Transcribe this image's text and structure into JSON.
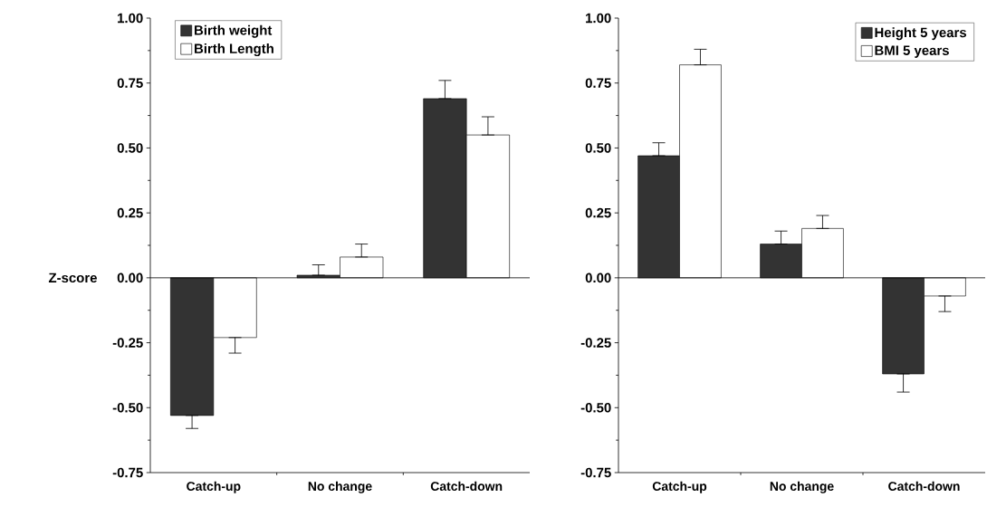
{
  "chart_data": [
    {
      "type": "bar",
      "ylabel": "Z-score",
      "categories": [
        "Catch-up",
        "No change",
        "Catch-down"
      ],
      "ylim": [
        -0.75,
        1.0
      ],
      "yticks": [
        {
          "value": -0.75,
          "label": "-0.75"
        },
        {
          "value": -0.5,
          "label": "-0.50"
        },
        {
          "value": -0.25,
          "label": "-0.25"
        },
        {
          "value": 0,
          "label": "0.00"
        },
        {
          "value": 0.25,
          "label": "0.25"
        },
        {
          "value": 0.5,
          "label": "0.50"
        },
        {
          "value": 0.75,
          "label": "0.75"
        },
        {
          "value": 1.0,
          "label": "1.00"
        }
      ],
      "legend": "top left",
      "series": [
        {
          "name": "Birth weight",
          "color": "#333333",
          "values": [
            -0.53,
            0.01,
            0.69
          ],
          "errors": [
            0.05,
            0.04,
            0.07
          ]
        },
        {
          "name": "Birth Length",
          "color": "#ffffff",
          "values": [
            -0.23,
            0.08,
            0.55
          ],
          "errors": [
            0.06,
            0.05,
            0.07
          ]
        }
      ]
    },
    {
      "type": "bar",
      "categories": [
        "Catch-up",
        "No change",
        "Catch-down"
      ],
      "ylim": [
        -0.75,
        1.0
      ],
      "yticks": [
        {
          "value": -0.75,
          "label": "-0.75"
        },
        {
          "value": -0.5,
          "label": "-0.50"
        },
        {
          "value": -0.25,
          "label": "-0.25"
        },
        {
          "value": 0,
          "label": "0.00"
        },
        {
          "value": 0.25,
          "label": "0.25"
        },
        {
          "value": 0.5,
          "label": "0.50"
        },
        {
          "value": 0.75,
          "label": "0.75"
        },
        {
          "value": 1.0,
          "label": "1.00"
        }
      ],
      "legend": "top right",
      "series": [
        {
          "name": "Height 5 years",
          "color": "#333333",
          "values": [
            0.47,
            0.13,
            -0.37
          ],
          "errors": [
            0.05,
            0.05,
            0.07
          ]
        },
        {
          "name": "BMI 5 years",
          "color": "#ffffff",
          "values": [
            0.82,
            0.19,
            -0.07
          ],
          "errors": [
            0.06,
            0.05,
            0.06
          ]
        }
      ]
    }
  ]
}
